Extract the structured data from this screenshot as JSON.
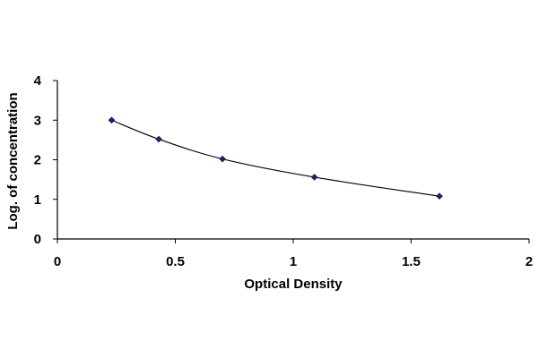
{
  "chart_data": {
    "type": "line",
    "title": "",
    "xlabel": "Optical Density",
    "ylabel": "Log. of concentration",
    "xlim": [
      0,
      2
    ],
    "ylim": [
      0,
      4
    ],
    "x_ticks": [
      "0",
      "0.5",
      "1",
      "1.5",
      "2"
    ],
    "y_ticks": [
      "0",
      "1",
      "2",
      "3",
      "4"
    ],
    "series": [
      {
        "x": [
          0.23,
          0.43,
          0.7,
          1.09,
          1.62
        ],
        "y": [
          3.0,
          2.52,
          2.02,
          1.56,
          1.08
        ]
      }
    ],
    "grid": false,
    "legend": "none",
    "colors": {
      "line": "#000000",
      "marker": "#1f1f6e",
      "axis": "#000000"
    },
    "marker": "diamond",
    "smooth_line": true
  }
}
